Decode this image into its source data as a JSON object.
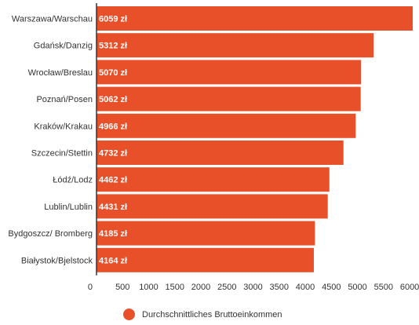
{
  "chart_data": {
    "type": "bar",
    "orientation": "horizontal",
    "categories": [
      "Warszawa/Warschau",
      "Gdańsk/Danzig",
      "Wrocław/Breslau",
      "Poznań/Posen",
      "Kraków/Krakau",
      "Szczecin/Stettin",
      "Łódź/Lodz",
      "Lublin/Lublin",
      "Bydgoszcz/ Bromberg",
      "Białystok/Bjelstock"
    ],
    "series": [
      {
        "name": "Durchschnittliches Bruttoeinkommen",
        "values": [
          6059,
          5312,
          5070,
          5062,
          4966,
          4732,
          4462,
          4431,
          4185,
          4164
        ],
        "value_labels": [
          "6059 zł",
          "5312 zł",
          "5070 zł",
          "5062 zł",
          "4966 zł",
          "4732 zł",
          "4462 zł",
          "4431 zł",
          "4185 zł",
          "4164 zł"
        ],
        "color": "#e8502a"
      }
    ],
    "xlim": [
      0,
      6059
    ],
    "x_ticks": [
      0,
      500,
      1000,
      1500,
      2000,
      2500,
      3000,
      3500,
      4000,
      4500,
      5000,
      5500,
      6000
    ],
    "x_tick_labels": [
      "0",
      "500",
      "1000",
      "1500",
      "2000",
      "2500",
      "3000",
      "3500",
      "4000",
      "4500",
      "5000",
      "5500",
      "6000"
    ],
    "grid": false,
    "legend_position": "bottom"
  },
  "colors": {
    "bar": "#e8502a",
    "axis": "#333333",
    "text": "#333333"
  }
}
